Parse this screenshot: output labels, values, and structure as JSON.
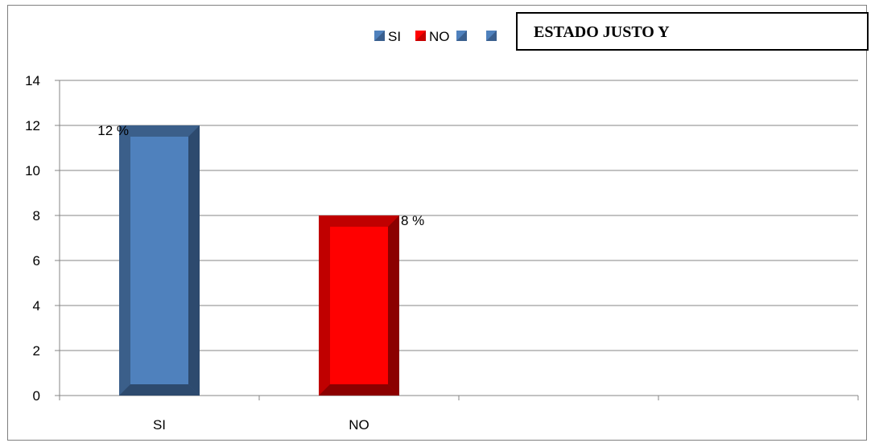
{
  "chart_data": {
    "type": "bar",
    "title": "ESTADO JUSTO Y",
    "categories": [
      "SI",
      "NO",
      "",
      ""
    ],
    "values": [
      12,
      8,
      null,
      null
    ],
    "data_labels": [
      "12 %",
      "8 %",
      "",
      ""
    ],
    "bar_colors": [
      "#4f81bd",
      "#ff0000"
    ],
    "ylim": [
      0,
      14
    ],
    "yticks": [
      0,
      2,
      4,
      6,
      8,
      10,
      12,
      14
    ],
    "grid": true,
    "legend": {
      "position": "top",
      "entries": [
        {
          "label": "SI",
          "color": "#4f81bd"
        },
        {
          "label": "NO",
          "color": "#ff0000"
        },
        {
          "label": "",
          "color": "#4f81bd"
        },
        {
          "label": "",
          "color": "#4f81bd"
        }
      ]
    }
  }
}
